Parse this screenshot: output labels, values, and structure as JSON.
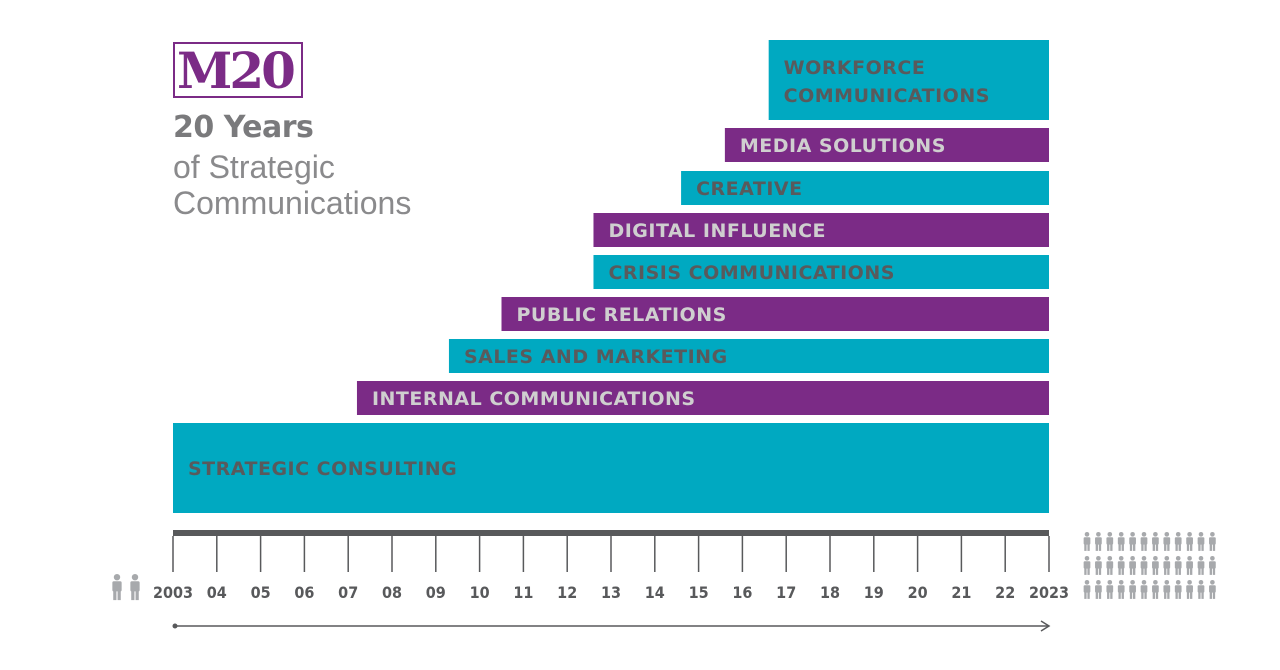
{
  "logo": {
    "text": "M20",
    "color": "#7b2b86"
  },
  "title": {
    "line1": "20 Years",
    "line2": "of Strategic",
    "line3": "Communications"
  },
  "colors": {
    "teal": "#00a9c1",
    "purple": "#7b2b86",
    "axis": "#58595b",
    "icon": "#a7a9ac"
  },
  "chart_data": {
    "type": "bar",
    "orientation": "horizontal-timeline",
    "xlim": [
      2003,
      2023
    ],
    "x_ticks": [
      "2003",
      "04",
      "05",
      "06",
      "07",
      "08",
      "09",
      "10",
      "11",
      "12",
      "13",
      "14",
      "15",
      "16",
      "17",
      "18",
      "19",
      "20",
      "21",
      "22",
      "2023"
    ],
    "series": [
      {
        "name": "STRATEGIC CONSULTING",
        "start": 2003,
        "end": 2023,
        "color": "teal"
      },
      {
        "name": "INTERNAL COMMUNICATIONS",
        "start": 2007.2,
        "end": 2023,
        "color": "purple"
      },
      {
        "name": "SALES AND MARKETING",
        "start": 2009.3,
        "end": 2023,
        "color": "teal"
      },
      {
        "name": "PUBLIC RELATIONS",
        "start": 2010.5,
        "end": 2023,
        "color": "purple"
      },
      {
        "name": "CRISIS COMMUNICATIONS",
        "start": 2012.6,
        "end": 2023,
        "color": "teal"
      },
      {
        "name": "DIGITAL INFLUENCE",
        "start": 2012.6,
        "end": 2023,
        "color": "purple"
      },
      {
        "name": "CREATIVE",
        "start": 2014.6,
        "end": 2023,
        "color": "teal"
      },
      {
        "name": "MEDIA SOLUTIONS",
        "start": 2015.6,
        "end": 2023,
        "color": "purple"
      },
      {
        "name": "WORKFORCE COMMUNICATIONS",
        "start": 2016.6,
        "end": 2023,
        "color": "teal"
      }
    ],
    "people_start": 2,
    "people_end": 36
  }
}
